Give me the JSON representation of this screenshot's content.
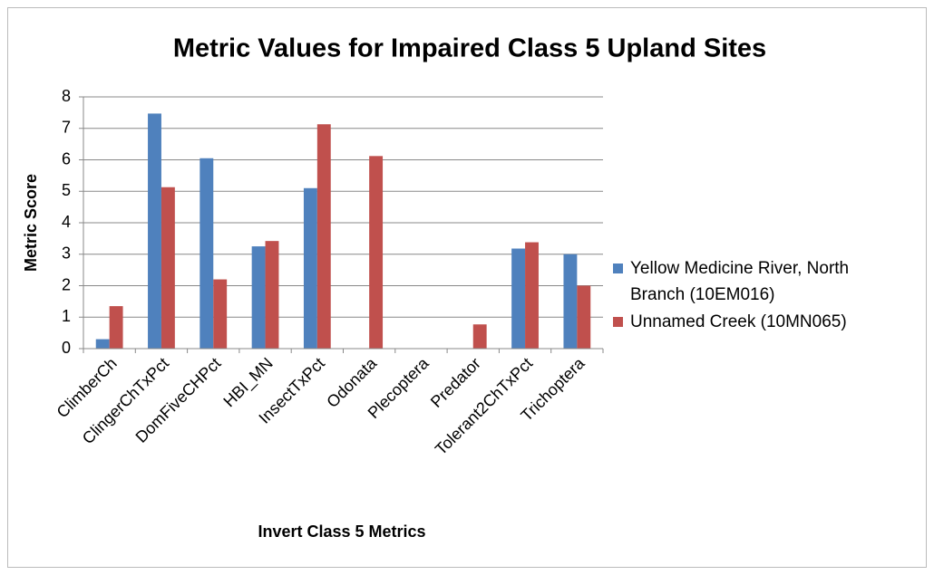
{
  "chart_data": {
    "type": "bar",
    "title": "Metric Values for Impaired Class 5 Upland Sites",
    "x_label": "Invert Class 5 Metrics",
    "y_label": "Metric Score",
    "categories": [
      "ClimberCh",
      "ClingerChTxPct",
      "DomFiveCHPct",
      "HBI_MN",
      "InsectTxPct",
      "Odonata",
      "Plecoptera",
      "Predator",
      "Tolerant2ChTxPct",
      "Trichoptera"
    ],
    "series": [
      {
        "name": "Yellow Medicine River, North Branch (10EM016)",
        "color": "#4f81bd",
        "values": [
          0.3,
          7.47,
          6.05,
          3.25,
          5.1,
          0,
          0,
          0,
          3.18,
          3.0
        ]
      },
      {
        "name": "Unnamed Creek (10MN065)",
        "color": "#c0504d",
        "values": [
          1.35,
          5.13,
          2.2,
          3.42,
          7.13,
          6.12,
          0,
          0.77,
          3.38,
          2.0
        ]
      }
    ],
    "ylim": [
      0,
      8
    ],
    "yticks": [
      0,
      1,
      2,
      3,
      4,
      5,
      6,
      7,
      8
    ],
    "grid": true,
    "legend": "right"
  }
}
